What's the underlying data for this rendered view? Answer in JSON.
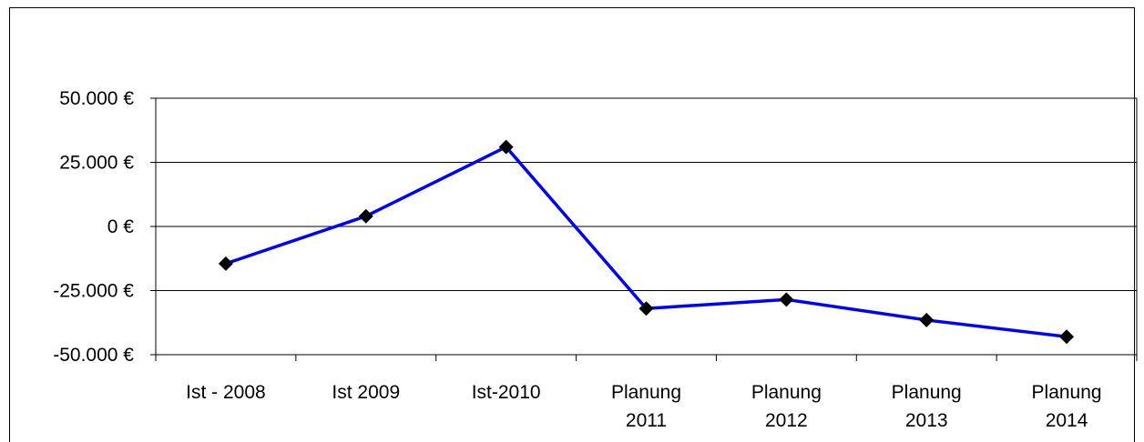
{
  "chart_data": {
    "type": "line",
    "title": "",
    "xlabel": "",
    "ylabel": "",
    "categories": [
      [
        "Ist - 2008"
      ],
      [
        "Ist 2009"
      ],
      [
        "Ist-2010"
      ],
      [
        "Planung",
        "2011"
      ],
      [
        "Planung",
        "2012"
      ],
      [
        "Planung",
        "2013"
      ],
      [
        "Planung",
        "2014"
      ]
    ],
    "series": [
      {
        "values": [
          -14500,
          4000,
          31000,
          -32000,
          -28500,
          -36500,
          -43000
        ],
        "color": "#0000ff",
        "marker": "diamond",
        "marker_color": "#000000"
      }
    ],
    "ylim": [
      -50000,
      50000
    ],
    "yticks": [
      50000,
      25000,
      0,
      -25000,
      -50000
    ],
    "ytick_labels": [
      "50.000 €",
      "25.000 €",
      "0 €",
      "-25.000 €",
      "-50.000 €"
    ],
    "grid": true,
    "legend": "none"
  }
}
